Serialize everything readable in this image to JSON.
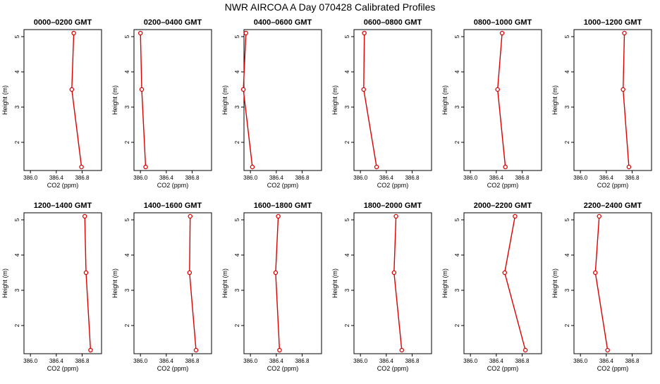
{
  "figure": {
    "title": "NWR AIRCOA A  Day 070428  Calibrated Profiles"
  },
  "chart_data": {
    "type": "line",
    "title": "NWR AIRCOA A  Day 070428  Calibrated Profiles",
    "xlabel": "CO2 (ppm)",
    "ylabel": "Height (m)",
    "xlim": [
      385.9,
      387.1
    ],
    "ylim": [
      1.2,
      5.2
    ],
    "x_ticks": [
      386.0,
      386.4,
      386.8
    ],
    "x_tick_labels": [
      "386.0",
      "386.4",
      "386.8"
    ],
    "y_ticks": [
      2,
      3,
      4,
      5
    ],
    "y_tick_labels": [
      "2",
      "3",
      "4",
      "5"
    ],
    "series_color": "#dd0000",
    "grid": false,
    "heights": [
      5.1,
      3.5,
      1.3
    ],
    "panels": [
      {
        "title": "0000–0200 GMT",
        "co2": [
          386.67,
          386.64,
          386.79
        ]
      },
      {
        "title": "0200–0400 GMT",
        "co2": [
          386.0,
          386.02,
          386.08
        ]
      },
      {
        "title": "0400–0600 GMT",
        "co2": [
          385.93,
          385.89,
          386.03
        ]
      },
      {
        "title": "0600–0800 GMT",
        "co2": [
          386.06,
          386.05,
          386.25
        ]
      },
      {
        "title": "0800–1000 GMT",
        "co2": [
          386.49,
          386.42,
          386.54
        ]
      },
      {
        "title": "1000–1200 GMT",
        "co2": [
          386.68,
          386.66,
          386.75
        ]
      },
      {
        "title": "1200–1400 GMT",
        "co2": [
          386.84,
          386.86,
          386.93
        ]
      },
      {
        "title": "1400–1600 GMT",
        "co2": [
          386.77,
          386.76,
          386.86
        ]
      },
      {
        "title": "1600–1800 GMT",
        "co2": [
          386.43,
          386.39,
          386.45
        ]
      },
      {
        "title": "1800–2000 GMT",
        "co2": [
          386.55,
          386.52,
          386.64
        ]
      },
      {
        "title": "2000–2200 GMT",
        "co2": [
          386.69,
          386.53,
          386.85
        ]
      },
      {
        "title": "2200–2400 GMT",
        "co2": [
          386.29,
          386.23,
          386.42
        ]
      }
    ]
  }
}
